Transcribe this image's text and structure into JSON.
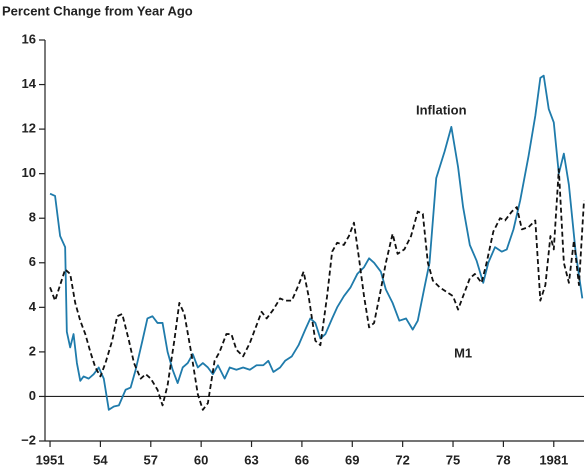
{
  "chart_data": {
    "type": "line",
    "title": "Percent Change from Year Ago",
    "xlim": [
      1950.7,
      1982.8
    ],
    "xticks": [
      1951,
      {
        "value": 1954,
        "label": "54"
      },
      {
        "value": 1957,
        "label": "57"
      },
      {
        "value": 1960,
        "label": "60"
      },
      {
        "value": 1963,
        "label": "63"
      },
      {
        "value": 1966,
        "label": "66"
      },
      {
        "value": 1969,
        "label": "69"
      },
      {
        "value": 1972,
        "label": "72"
      },
      {
        "value": 1975,
        "label": "75"
      },
      {
        "value": 1978,
        "label": "78"
      },
      1981
    ],
    "ylim": [
      -2,
      16
    ],
    "yticks": [
      {
        "value": -2,
        "label": "−2"
      },
      0,
      2,
      4,
      6,
      8,
      10,
      12,
      14,
      16
    ],
    "grid": false,
    "zero_line": true,
    "series": [
      {
        "name": "Inflation",
        "color": "#1f7bab",
        "dashed": false,
        "x": [
          1951.0,
          1951.3,
          1951.6,
          1951.9,
          1952.0,
          1952.2,
          1952.4,
          1952.6,
          1952.8,
          1953.0,
          1953.3,
          1953.6,
          1953.9,
          1954.2,
          1954.5,
          1954.8,
          1955.1,
          1955.5,
          1955.8,
          1956.1,
          1956.5,
          1956.8,
          1957.1,
          1957.4,
          1957.7,
          1958.0,
          1958.3,
          1958.6,
          1958.9,
          1959.2,
          1959.5,
          1959.8,
          1960.1,
          1960.4,
          1960.7,
          1961.0,
          1961.4,
          1961.7,
          1962.1,
          1962.5,
          1962.9,
          1963.3,
          1963.7,
          1964.0,
          1964.3,
          1964.7,
          1965.0,
          1965.4,
          1965.8,
          1966.2,
          1966.5,
          1966.8,
          1967.1,
          1967.4,
          1967.8,
          1968.1,
          1968.5,
          1968.9,
          1969.3,
          1969.7,
          1970.0,
          1970.3,
          1970.7,
          1971.0,
          1971.4,
          1971.8,
          1972.2,
          1972.6,
          1972.9,
          1973.3,
          1973.6,
          1974.0,
          1974.5,
          1974.9,
          1975.3,
          1975.6,
          1976.0,
          1976.4,
          1976.8,
          1977.1,
          1977.5,
          1977.9,
          1978.2,
          1978.6,
          1979.0,
          1979.5,
          1979.9,
          1980.2,
          1980.4,
          1980.7,
          1981.0,
          1981.3,
          1981.6,
          1981.9,
          1982.3,
          1982.7
        ],
        "values": [
          9.1,
          9.0,
          7.2,
          6.7,
          2.9,
          2.2,
          2.8,
          1.5,
          0.7,
          0.9,
          0.8,
          1.0,
          1.3,
          0.8,
          -0.6,
          -0.45,
          -0.4,
          0.3,
          0.4,
          1.2,
          2.5,
          3.5,
          3.6,
          3.3,
          3.3,
          2.0,
          1.2,
          0.6,
          1.3,
          1.5,
          1.9,
          1.3,
          1.5,
          1.3,
          1.0,
          1.4,
          0.8,
          1.3,
          1.2,
          1.3,
          1.2,
          1.4,
          1.4,
          1.6,
          1.1,
          1.3,
          1.6,
          1.8,
          2.3,
          3.0,
          3.5,
          3.3,
          2.6,
          2.8,
          3.5,
          4.0,
          4.5,
          4.9,
          5.5,
          5.8,
          6.2,
          6.0,
          5.6,
          4.8,
          4.2,
          3.4,
          3.5,
          3.0,
          3.4,
          4.9,
          6.0,
          9.8,
          11.0,
          12.1,
          10.3,
          8.5,
          6.8,
          6.1,
          5.1,
          6.0,
          6.7,
          6.5,
          6.6,
          7.5,
          8.8,
          10.8,
          12.6,
          14.3,
          14.4,
          12.9,
          12.3,
          10.0,
          10.9,
          9.5,
          6.5,
          4.4
        ]
      },
      {
        "name": "M1",
        "color": "#111111",
        "dashed": true,
        "x": [
          1951.0,
          1951.3,
          1951.6,
          1951.9,
          1952.2,
          1952.5,
          1952.8,
          1953.1,
          1953.4,
          1953.7,
          1954.0,
          1954.3,
          1954.7,
          1955.0,
          1955.3,
          1955.7,
          1956.0,
          1956.4,
          1956.7,
          1957.0,
          1957.4,
          1957.7,
          1958.0,
          1958.4,
          1958.7,
          1959.0,
          1959.4,
          1959.8,
          1960.1,
          1960.4,
          1960.8,
          1961.1,
          1961.5,
          1961.8,
          1962.1,
          1962.5,
          1962.9,
          1963.3,
          1963.6,
          1963.9,
          1964.3,
          1964.7,
          1965.0,
          1965.4,
          1965.8,
          1966.1,
          1966.4,
          1966.8,
          1967.1,
          1967.5,
          1967.8,
          1968.1,
          1968.5,
          1968.8,
          1969.1,
          1969.4,
          1969.7,
          1970.0,
          1970.3,
          1970.7,
          1971.0,
          1971.4,
          1971.7,
          1972.1,
          1972.5,
          1972.9,
          1973.2,
          1973.5,
          1973.8,
          1974.2,
          1974.6,
          1975.0,
          1975.3,
          1975.7,
          1976.0,
          1976.3,
          1976.7,
          1977.0,
          1977.4,
          1977.8,
          1978.1,
          1978.5,
          1978.8,
          1979.1,
          1979.5,
          1979.9,
          1980.2,
          1980.5,
          1980.8,
          1981.0,
          1981.3,
          1981.6,
          1981.9,
          1982.2,
          1982.5,
          1982.8
        ],
        "values": [
          4.9,
          4.3,
          5.0,
          5.7,
          5.5,
          4.2,
          3.4,
          2.8,
          2.0,
          1.3,
          0.9,
          1.5,
          2.5,
          3.6,
          3.7,
          2.5,
          1.5,
          0.8,
          1.0,
          0.8,
          0.3,
          -0.4,
          0.5,
          2.5,
          4.2,
          3.7,
          2.0,
          0.1,
          -0.6,
          -0.3,
          1.6,
          2.0,
          2.8,
          2.8,
          2.1,
          1.8,
          2.4,
          3.2,
          3.8,
          3.5,
          3.9,
          4.4,
          4.3,
          4.3,
          5.0,
          5.6,
          4.5,
          2.5,
          2.3,
          4.5,
          6.5,
          6.9,
          6.8,
          7.2,
          7.8,
          6.2,
          4.5,
          3.1,
          3.3,
          4.8,
          6.0,
          7.3,
          6.4,
          6.6,
          7.2,
          8.3,
          8.2,
          6.0,
          5.2,
          4.9,
          4.7,
          4.5,
          3.9,
          4.7,
          5.3,
          5.5,
          5.1,
          6.0,
          7.4,
          8.0,
          7.9,
          8.3,
          8.5,
          7.5,
          7.6,
          7.9,
          4.3,
          5.0,
          7.2,
          6.6,
          10.2,
          6.0,
          5.1,
          7.0,
          5.0,
          8.8
        ]
      }
    ]
  }
}
